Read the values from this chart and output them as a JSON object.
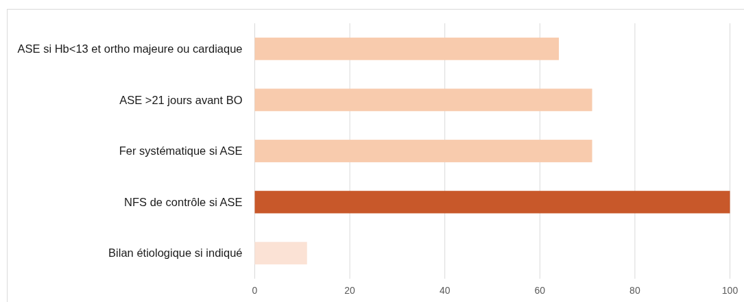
{
  "chart_data": {
    "type": "bar",
    "orientation": "horizontal",
    "categories": [
      "ASE si Hb<13 et ortho majeure ou cardiaque",
      "ASE >21 jours avant BO",
      "Fer systématique si ASE",
      "NFS de contrôle si ASE",
      "Bilan étiologique si indiqué"
    ],
    "values": [
      64,
      71,
      71,
      100,
      11
    ],
    "colors": [
      "#f8cbad",
      "#f8cbad",
      "#f8cbad",
      "#c8582a",
      "#fbe2d5"
    ],
    "xlim": [
      0,
      100
    ],
    "xticks": [
      0,
      20,
      40,
      60,
      80,
      100
    ],
    "grid": "x"
  }
}
